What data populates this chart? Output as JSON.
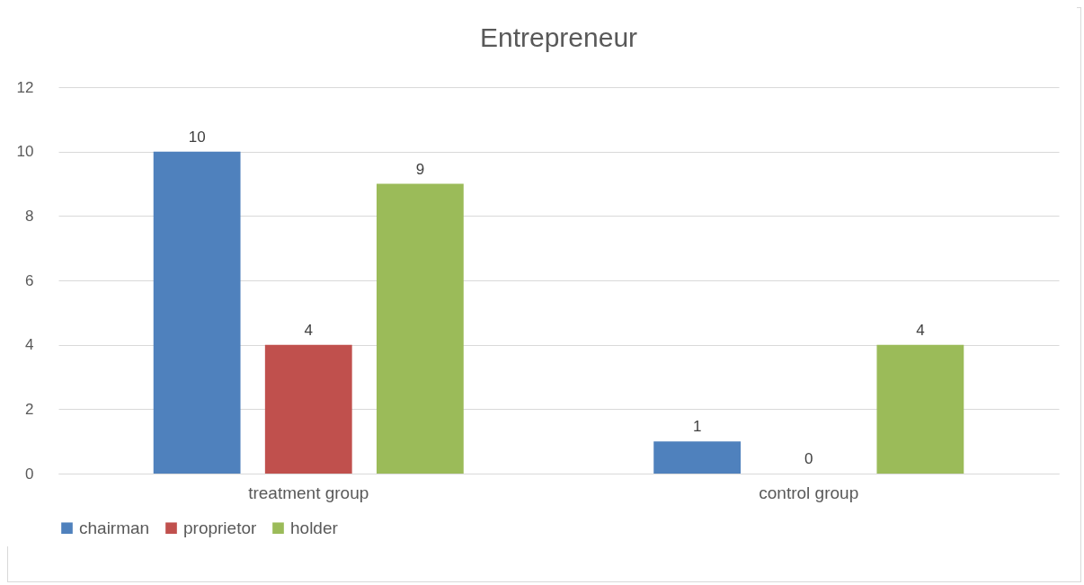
{
  "chart_data": {
    "type": "bar",
    "title": "Entrepreneur",
    "categories": [
      "treatment group",
      "control group"
    ],
    "series": [
      {
        "name": "chairman",
        "color": "#4f81bd",
        "values": [
          10,
          1
        ]
      },
      {
        "name": "proprietor",
        "color": "#c0504d",
        "values": [
          4,
          0
        ]
      },
      {
        "name": "holder",
        "color": "#9bbb59",
        "values": [
          9,
          4
        ]
      }
    ],
    "ylim": [
      0,
      12
    ],
    "yticks": [
      0,
      2,
      4,
      6,
      8,
      10,
      12
    ],
    "grid": "y",
    "legend": "bottom",
    "data_labels": true
  }
}
